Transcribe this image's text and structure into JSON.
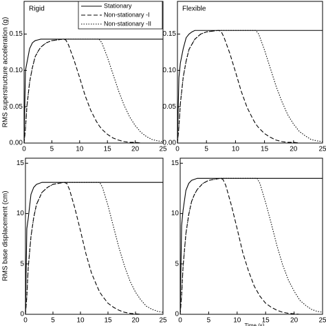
{
  "chart_data": [
    {
      "type": "line",
      "title": "Rigid",
      "ylabel": "RMS superstructure acceleration (g)",
      "legend": "top-right",
      "x": [
        0,
        0.25,
        0.5,
        1,
        1.5,
        2,
        2.5,
        3,
        4,
        5,
        6,
        7,
        7.5,
        8,
        9,
        10,
        11,
        12,
        13,
        13.5,
        14,
        15,
        16,
        17,
        18,
        19,
        20,
        21,
        22,
        23,
        24,
        25
      ],
      "xlim": [
        0,
        25
      ],
      "xticks": [
        0,
        5,
        10,
        15,
        20,
        25
      ],
      "ylim": [
        0,
        0.195
      ],
      "yticks": [
        {
          "value": 0,
          "label": "0.00"
        },
        {
          "value": 0.05,
          "label": "0.05"
        },
        {
          "value": 0.1,
          "label": "0.10"
        },
        {
          "value": 0.15,
          "label": "0.15"
        }
      ],
      "series": [
        {
          "name": "Stationary",
          "color": "#000000",
          "style": "solid",
          "values": [
            0,
            0.1,
            0.11,
            0.13,
            0.138,
            0.141,
            0.142,
            0.143,
            0.143,
            0.143,
            0.143,
            0.143,
            0.143,
            0.143,
            0.143,
            0.143,
            0.143,
            0.143,
            0.143,
            0.143,
            0.143,
            0.143,
            0.143,
            0.143,
            0.143,
            0.143,
            0.143,
            0.143,
            0.143,
            0.143,
            0.143,
            0.143
          ]
        },
        {
          "name": "Non-stationary -I",
          "color": "#000000",
          "style": "dashed",
          "values": [
            0,
            0.02,
            0.05,
            0.084,
            0.104,
            0.119,
            0.126,
            0.132,
            0.138,
            0.141,
            0.142,
            0.143,
            0.142,
            0.135,
            0.114,
            0.09,
            0.065,
            0.045,
            0.03,
            0.024,
            0.019,
            0.012,
            0.007,
            0.004,
            0.002,
            0.001,
            0.001,
            0,
            0,
            0,
            0,
            0
          ]
        },
        {
          "name": "Non-stationary -II",
          "color": "#000000",
          "style": "dotted",
          "values": [
            0,
            0.02,
            0.05,
            0.084,
            0.104,
            0.119,
            0.126,
            0.132,
            0.138,
            0.141,
            0.142,
            0.143,
            0.143,
            0.143,
            0.143,
            0.143,
            0.143,
            0.143,
            0.143,
            0.143,
            0.138,
            0.118,
            0.095,
            0.072,
            0.052,
            0.036,
            0.024,
            0.015,
            0.009,
            0.005,
            0.003,
            0.002
          ]
        }
      ]
    },
    {
      "type": "line",
      "title": "Flexible",
      "x": [
        0,
        0.25,
        0.5,
        1,
        1.5,
        2,
        2.5,
        3,
        4,
        5,
        6,
        7,
        7.5,
        8,
        9,
        10,
        11,
        12,
        13,
        13.5,
        14,
        15,
        16,
        17,
        18,
        19,
        20,
        21,
        22,
        23,
        24,
        25
      ],
      "xlim": [
        0,
        25
      ],
      "xticks": [
        0,
        5,
        10,
        15,
        20,
        25
      ],
      "ylim": [
        0,
        0.195
      ],
      "yticks": [
        {
          "value": 0,
          "label": "0.00"
        },
        {
          "value": 0.05,
          "label": "0.05"
        },
        {
          "value": 0.1,
          "label": "0.10"
        },
        {
          "value": 0.15,
          "label": "0.15"
        }
      ],
      "series": [
        {
          "color": "#000000",
          "style": "solid",
          "values": [
            0,
            0.09,
            0.11,
            0.13,
            0.145,
            0.15,
            0.153,
            0.155,
            0.155,
            0.155,
            0.155,
            0.155,
            0.155,
            0.155,
            0.155,
            0.155,
            0.155,
            0.155,
            0.155,
            0.155,
            0.155,
            0.155,
            0.155,
            0.155,
            0.155,
            0.155,
            0.155,
            0.155,
            0.155,
            0.155,
            0.155,
            0.155
          ]
        },
        {
          "color": "#000000",
          "style": "dashed",
          "values": [
            0,
            0.022,
            0.054,
            0.091,
            0.113,
            0.129,
            0.136,
            0.143,
            0.15,
            0.153,
            0.154,
            0.155,
            0.154,
            0.146,
            0.124,
            0.098,
            0.071,
            0.049,
            0.033,
            0.026,
            0.021,
            0.013,
            0.008,
            0.004,
            0.002,
            0.001,
            0.001,
            0,
            0,
            0,
            0,
            0
          ]
        },
        {
          "color": "#000000",
          "style": "dotted",
          "values": [
            0,
            0.022,
            0.054,
            0.091,
            0.113,
            0.129,
            0.136,
            0.143,
            0.15,
            0.153,
            0.154,
            0.155,
            0.155,
            0.155,
            0.155,
            0.155,
            0.155,
            0.155,
            0.155,
            0.155,
            0.15,
            0.128,
            0.103,
            0.078,
            0.057,
            0.039,
            0.026,
            0.016,
            0.01,
            0.005,
            0.003,
            0.002
          ]
        }
      ]
    },
    {
      "type": "line",
      "ylabel": "RMS base displacement (cm)",
      "x": [
        0,
        0.25,
        0.5,
        1,
        1.5,
        2,
        2.5,
        3,
        4,
        5,
        6,
        7,
        7.5,
        8,
        9,
        10,
        11,
        12,
        13,
        13.5,
        14,
        15,
        16,
        17,
        18,
        19,
        20,
        21,
        22,
        23,
        24,
        25
      ],
      "xlim": [
        0,
        25
      ],
      "xticks": [
        0,
        5,
        10,
        15,
        20,
        25
      ],
      "ylim": [
        0,
        15.5
      ],
      "yticks": [
        0,
        5,
        10,
        15
      ],
      "series": [
        {
          "color": "#000000",
          "style": "solid",
          "values": [
            0,
            8.5,
            9.5,
            11.9,
            12.6,
            12.9,
            13.0,
            13.1,
            13.1,
            13.1,
            13.1,
            13.1,
            13.1,
            13.1,
            13.1,
            13.1,
            13.1,
            13.1,
            13.1,
            13.1,
            13.1,
            13.1,
            13.1,
            13.1,
            13.1,
            13.1,
            13.1,
            13.1,
            13.1,
            13.1,
            13.1,
            13.1
          ]
        },
        {
          "color": "#000000",
          "style": "dashed",
          "values": [
            0,
            1.8,
            4.6,
            7.7,
            9.6,
            10.9,
            11.5,
            12.1,
            12.6,
            12.9,
            13.0,
            13.1,
            13.0,
            12.4,
            10.5,
            8.3,
            6.0,
            4.1,
            2.8,
            2.2,
            1.8,
            1.1,
            0.7,
            0.4,
            0.2,
            0.1,
            0.05,
            0,
            0,
            0,
            0,
            0
          ]
        },
        {
          "color": "#000000",
          "style": "dotted",
          "values": [
            0,
            1.8,
            4.6,
            7.7,
            9.6,
            10.9,
            11.5,
            12.1,
            12.6,
            12.9,
            13.0,
            13.1,
            13.1,
            13.1,
            13.1,
            13.1,
            13.1,
            13.1,
            13.1,
            13.1,
            12.6,
            10.8,
            8.7,
            6.6,
            4.8,
            3.3,
            2.2,
            1.4,
            0.8,
            0.5,
            0.3,
            0.2
          ]
        }
      ]
    },
    {
      "type": "line",
      "xlabel": "Time (s)",
      "x": [
        0,
        0.25,
        0.5,
        1,
        1.5,
        2,
        2.5,
        3,
        4,
        5,
        6,
        7,
        7.5,
        8,
        9,
        10,
        11,
        12,
        13,
        13.5,
        14,
        15,
        16,
        17,
        18,
        19,
        20,
        21,
        22,
        23,
        24,
        25
      ],
      "xlim": [
        0,
        25
      ],
      "xticks": [
        0,
        5,
        10,
        15,
        20,
        25
      ],
      "ylim": [
        0,
        15.5
      ],
      "yticks": [
        0,
        5,
        10,
        15
      ],
      "series": [
        {
          "color": "#000000",
          "style": "solid",
          "values": [
            0,
            8.8,
            10.3,
            12.3,
            13.0,
            13.3,
            13.4,
            13.5,
            13.5,
            13.5,
            13.5,
            13.5,
            13.5,
            13.5,
            13.5,
            13.5,
            13.5,
            13.5,
            13.5,
            13.5,
            13.5,
            13.5,
            13.5,
            13.5,
            13.5,
            13.5,
            13.5,
            13.5,
            13.5,
            13.5,
            13.5,
            13.5
          ]
        },
        {
          "color": "#000000",
          "style": "dashed",
          "values": [
            0,
            1.9,
            4.7,
            8.0,
            9.9,
            11.2,
            11.9,
            12.4,
            13.0,
            13.3,
            13.4,
            13.5,
            13.4,
            12.8,
            10.8,
            8.5,
            6.1,
            4.3,
            2.8,
            2.3,
            1.8,
            1.1,
            0.7,
            0.4,
            0.2,
            0.1,
            0.05,
            0,
            0,
            0,
            0,
            0
          ]
        },
        {
          "color": "#000000",
          "style": "dotted",
          "values": [
            0,
            1.9,
            4.7,
            8.0,
            9.9,
            11.2,
            11.9,
            12.4,
            13.0,
            13.3,
            13.4,
            13.5,
            13.5,
            13.5,
            13.5,
            13.5,
            13.5,
            13.5,
            13.5,
            13.5,
            13.0,
            11.1,
            9.0,
            6.8,
            4.9,
            3.4,
            2.3,
            1.4,
            0.9,
            0.5,
            0.3,
            0.2
          ]
        }
      ]
    }
  ]
}
